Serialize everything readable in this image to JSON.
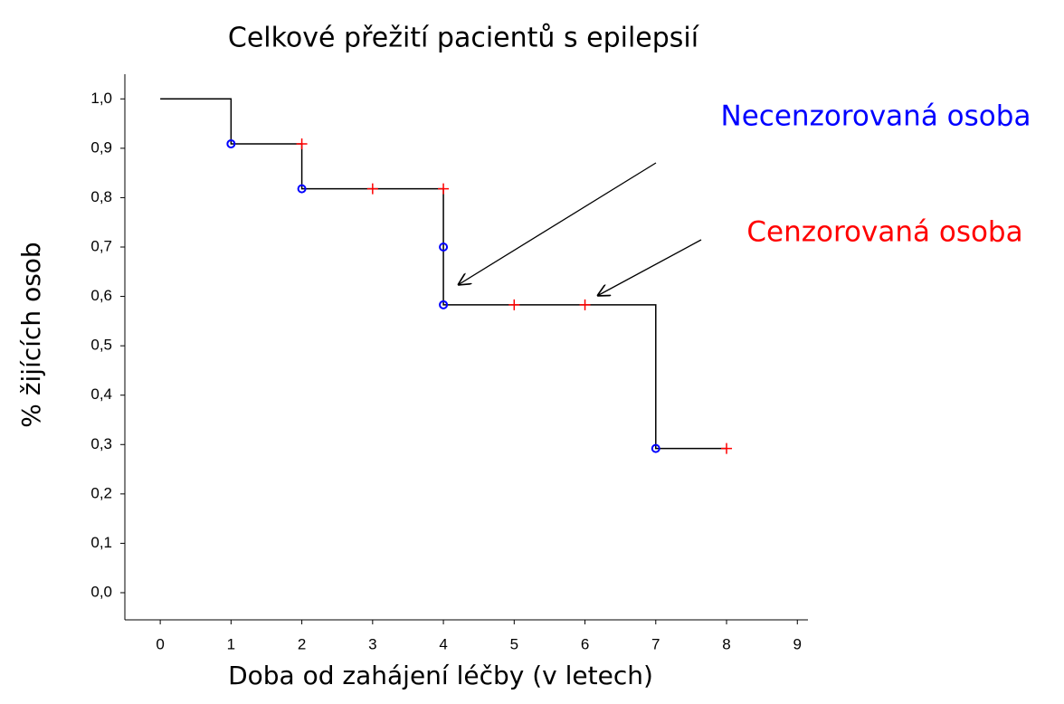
{
  "chart_data": {
    "type": "line",
    "title": "Celkové přežití pacientů s epilepsií",
    "xlabel": "Doba od zahájení léčby (v letech)",
    "ylabel": "% žijících osob",
    "annotations": [
      {
        "text": "Necenzorovaná osoba",
        "color": "#0000ff"
      },
      {
        "text": "Cenzorovaná osoba",
        "color": "#ff0000"
      }
    ],
    "series": [
      {
        "color": "#000000",
        "marker": "step",
        "x": [
          0,
          1,
          2,
          4,
          4,
          7,
          8
        ],
        "values": [
          1.0,
          0.909,
          0.818,
          0.7,
          0.583,
          0.292,
          0.292
        ]
      },
      {
        "color": "#0000ff",
        "marker": "circle",
        "x": [
          1,
          2,
          4,
          4,
          7
        ],
        "values": [
          0.909,
          0.818,
          0.7,
          0.583,
          0.292
        ]
      },
      {
        "color": "#ff0000",
        "marker": "plus",
        "x": [
          2,
          3,
          4,
          5,
          6,
          8
        ],
        "values": [
          0.909,
          0.818,
          0.818,
          0.583,
          0.583,
          0.292
        ]
      }
    ],
    "xlim": [
      -0.5,
      9.15
    ],
    "ylim": [
      -0.055,
      1.05
    ],
    "xticks": [
      0,
      1,
      2,
      3,
      4,
      5,
      6,
      7,
      8,
      9
    ],
    "yticks": [
      {
        "value": 0,
        "label": "0,0"
      },
      {
        "value": 0.1,
        "label": "0,1"
      },
      {
        "value": 0.2,
        "label": "0,2"
      },
      {
        "value": 0.3,
        "label": "0,3"
      },
      {
        "value": 0.4,
        "label": "0,4"
      },
      {
        "value": 0.5,
        "label": "0,5"
      },
      {
        "value": 0.6,
        "label": "0,6"
      },
      {
        "value": 0.7,
        "label": "0,7"
      },
      {
        "value": 0.8,
        "label": "0,8"
      },
      {
        "value": 0.9,
        "label": "0,9"
      },
      {
        "value": 1.0,
        "label": "1,0"
      }
    ]
  }
}
